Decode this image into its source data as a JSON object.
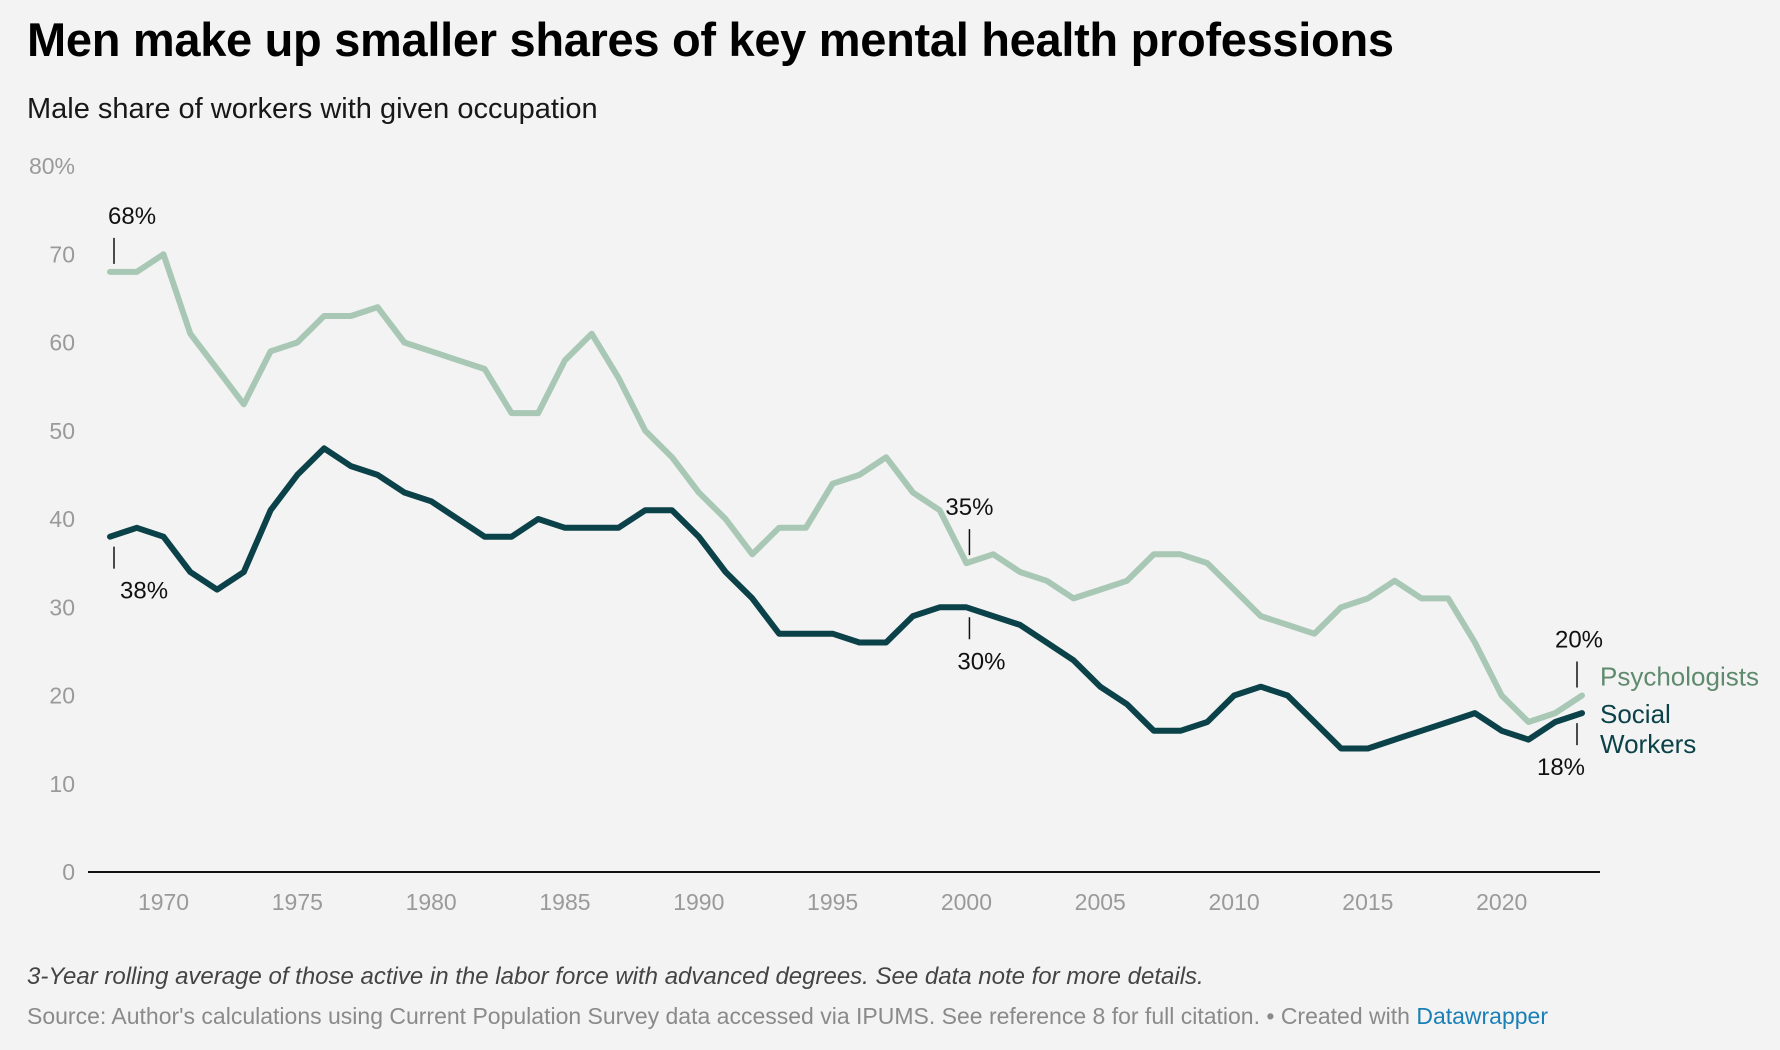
{
  "header": {
    "title": "Men make up smaller shares of key mental health professions",
    "subtitle": "Male share of workers with given occupation"
  },
  "footer": {
    "note": "3-Year rolling average of those active in the labor force with advanced degrees. See data note for more details.",
    "source": "Source: Author's calculations using Current Population Survey data accessed via IPUMS. See reference 8 for full citation.",
    "created_prefix": "• Created with",
    "created_link": "Datawrapper"
  },
  "colors": {
    "psychologists": "#a8c8b5",
    "psychologists_label": "#5f8a6e",
    "social_workers": "#0b4148",
    "axis_text": "#9a9a9a",
    "baseline": "#111111",
    "annotation": "#111111",
    "link": "#1a7fb5",
    "background": "#f3f3f3"
  },
  "chart_data": {
    "type": "line",
    "title": "Men make up smaller shares of key mental health professions",
    "subtitle": "Male share of workers with given occupation",
    "ylim": [
      0,
      80
    ],
    "yticks": [
      0,
      10,
      20,
      30,
      40,
      50,
      60,
      70,
      80
    ],
    "ytick_labels": [
      "0",
      "10",
      "20",
      "30",
      "40",
      "50",
      "60",
      "70",
      "80%"
    ],
    "xlim": [
      1968,
      2023
    ],
    "xticks": [
      1970,
      1975,
      1980,
      1985,
      1990,
      1995,
      2000,
      2005,
      2010,
      2015,
      2020
    ],
    "x": [
      1968,
      1969,
      1970,
      1971,
      1972,
      1973,
      1974,
      1975,
      1976,
      1977,
      1978,
      1979,
      1980,
      1981,
      1982,
      1983,
      1984,
      1985,
      1986,
      1987,
      1988,
      1989,
      1990,
      1991,
      1992,
      1993,
      1994,
      1995,
      1996,
      1997,
      1998,
      1999,
      2000,
      2001,
      2002,
      2003,
      2004,
      2005,
      2006,
      2007,
      2008,
      2009,
      2010,
      2011,
      2012,
      2013,
      2014,
      2015,
      2016,
      2017,
      2018,
      2019,
      2020,
      2021,
      2022,
      2023
    ],
    "series": [
      {
        "name": "Psychologists",
        "color": "#a8c8b5",
        "values": [
          68,
          68,
          70,
          61,
          57,
          53,
          59,
          60,
          63,
          63,
          64,
          60,
          59,
          58,
          57,
          52,
          52,
          58,
          61,
          56,
          50,
          47,
          43,
          40,
          36,
          39,
          39,
          44,
          45,
          47,
          43,
          41,
          35,
          36,
          34,
          33,
          31,
          32,
          33,
          36,
          36,
          35,
          32,
          29,
          28,
          27,
          30,
          31,
          33,
          31,
          31,
          26,
          20,
          17,
          18,
          20
        ]
      },
      {
        "name": "Social Workers",
        "color": "#0b4148",
        "values": [
          38,
          39,
          38,
          34,
          32,
          34,
          41,
          45,
          48,
          46,
          45,
          43,
          42,
          40,
          38,
          38,
          40,
          39,
          39,
          39,
          41,
          41,
          38,
          34,
          31,
          27,
          27,
          27,
          26,
          26,
          29,
          30,
          30,
          29,
          28,
          26,
          24,
          21,
          19,
          16,
          16,
          17,
          20,
          21,
          20,
          17,
          14,
          14,
          15,
          16,
          17,
          18,
          16,
          15,
          17,
          18
        ]
      }
    ],
    "series_labels": [
      {
        "series": "Psychologists",
        "lines": [
          "Psychologists"
        ]
      },
      {
        "series": "Social Workers",
        "lines": [
          "Social",
          "Workers"
        ]
      }
    ],
    "annotations": [
      {
        "label": "68%",
        "x": 1968,
        "y": 68,
        "placement": "above"
      },
      {
        "label": "38%",
        "x": 1968,
        "y": 38,
        "placement": "below"
      },
      {
        "label": "35%",
        "x": 2000,
        "y": 35,
        "placement": "above"
      },
      {
        "label": "30%",
        "x": 2000,
        "y": 30,
        "placement": "below"
      },
      {
        "label": "20%",
        "x": 2023,
        "y": 20,
        "placement": "above"
      },
      {
        "label": "18%",
        "x": 2023,
        "y": 18,
        "placement": "below"
      }
    ],
    "grid": false,
    "legend": "direct labels at line ends (right)"
  }
}
